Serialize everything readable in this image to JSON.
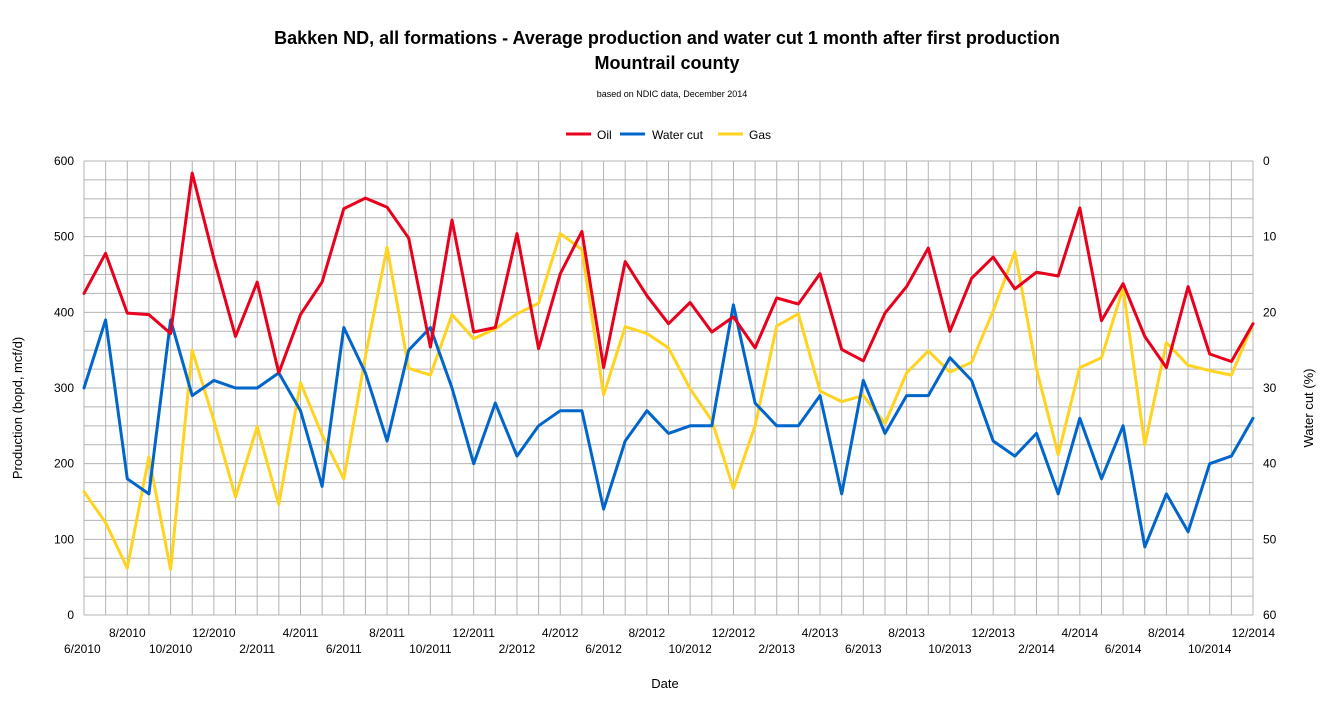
{
  "chart_data": {
    "type": "line",
    "title": "Bakken ND, all formations - Average production and water cut 1 month after first production",
    "title_line2": "Mountrail county",
    "subtitle": "based on NDIC data, December 2014",
    "xlabel": "Date",
    "ylabel": "Production (bopd, mcf/d)",
    "y2label": "Water cut (%)",
    "ylim": [
      0,
      600
    ],
    "y2lim": [
      0,
      60
    ],
    "y2_inverted": true,
    "yticks": [
      "0",
      "100",
      "200",
      "300",
      "400",
      "500",
      "600"
    ],
    "y2ticks": [
      "0",
      "10",
      "20",
      "30",
      "40",
      "50",
      "60"
    ],
    "grid": true,
    "legend_position": "top-center",
    "x": [
      "6/2010",
      "7/2010",
      "8/2010",
      "9/2010",
      "10/2010",
      "11/2010",
      "12/2010",
      "1/2011",
      "2/2011",
      "3/2011",
      "4/2011",
      "5/2011",
      "6/2011",
      "7/2011",
      "8/2011",
      "9/2011",
      "10/2011",
      "11/2011",
      "12/2011",
      "1/2012",
      "2/2012",
      "3/2012",
      "4/2012",
      "5/2012",
      "6/2012",
      "7/2012",
      "8/2012",
      "9/2012",
      "10/2012",
      "11/2012",
      "12/2012",
      "1/2013",
      "2/2013",
      "3/2013",
      "4/2013",
      "5/2013",
      "6/2013",
      "7/2013",
      "8/2013",
      "9/2013",
      "10/2013",
      "11/2013",
      "12/2013",
      "1/2014",
      "2/2014",
      "3/2014",
      "4/2014",
      "5/2014",
      "6/2014",
      "7/2014",
      "8/2014",
      "9/2014",
      "10/2014",
      "11/2014",
      "12/2014"
    ],
    "x_tick_labels": [
      {
        "index": 0,
        "label": "6/2010",
        "row": 2
      },
      {
        "index": 2,
        "label": "8/2010",
        "row": 1
      },
      {
        "index": 4,
        "label": "10/2010",
        "row": 2
      },
      {
        "index": 6,
        "label": "12/2010",
        "row": 1
      },
      {
        "index": 8,
        "label": "2/2011",
        "row": 2
      },
      {
        "index": 10,
        "label": "4/2011",
        "row": 1
      },
      {
        "index": 12,
        "label": "6/2011",
        "row": 2
      },
      {
        "index": 14,
        "label": "8/2011",
        "row": 1
      },
      {
        "index": 16,
        "label": "10/2011",
        "row": 2
      },
      {
        "index": 18,
        "label": "12/2011",
        "row": 1
      },
      {
        "index": 20,
        "label": "2/2012",
        "row": 2
      },
      {
        "index": 22,
        "label": "4/2012",
        "row": 1
      },
      {
        "index": 24,
        "label": "6/2012",
        "row": 2
      },
      {
        "index": 26,
        "label": "8/2012",
        "row": 1
      },
      {
        "index": 28,
        "label": "10/2012",
        "row": 2
      },
      {
        "index": 30,
        "label": "12/2012",
        "row": 1
      },
      {
        "index": 32,
        "label": "2/2013",
        "row": 2
      },
      {
        "index": 34,
        "label": "4/2013",
        "row": 1
      },
      {
        "index": 36,
        "label": "6/2013",
        "row": 2
      },
      {
        "index": 38,
        "label": "8/2013",
        "row": 1
      },
      {
        "index": 40,
        "label": "10/2013",
        "row": 2
      },
      {
        "index": 42,
        "label": "12/2013",
        "row": 1
      },
      {
        "index": 44,
        "label": "2/2014",
        "row": 2
      },
      {
        "index": 46,
        "label": "4/2014",
        "row": 1
      },
      {
        "index": 48,
        "label": "6/2014",
        "row": 2
      },
      {
        "index": 50,
        "label": "8/2014",
        "row": 1
      },
      {
        "index": 52,
        "label": "10/2014",
        "row": 2
      },
      {
        "index": 54,
        "label": "12/2014",
        "row": 1
      }
    ],
    "series": [
      {
        "name": "Oil",
        "color": "#e8001c",
        "axis": "left",
        "values": [
          425,
          478,
          399,
          397,
          372,
          584,
          471,
          368,
          440,
          320,
          397,
          440,
          537,
          551,
          539,
          498,
          354,
          522,
          374,
          380,
          504,
          352,
          451,
          507,
          327,
          467,
          422,
          385,
          413,
          374,
          394,
          353,
          419,
          411,
          451,
          351,
          336,
          399,
          434,
          485,
          375,
          445,
          473,
          431,
          453,
          448,
          538,
          389,
          438,
          368,
          327,
          434,
          345,
          335,
          385
        ]
      },
      {
        "name": "Water cut",
        "color": "#0066cc",
        "axis": "right",
        "values": [
          30,
          21,
          42,
          44,
          21,
          31,
          29,
          30,
          30,
          28,
          33,
          43,
          22,
          28,
          37,
          25,
          22,
          30,
          40,
          32,
          39,
          35,
          33,
          33,
          46,
          37,
          33,
          36,
          35,
          35,
          19,
          32,
          35,
          35,
          31,
          44,
          29,
          36,
          31,
          31,
          26,
          29,
          37,
          39,
          36,
          44,
          34,
          42,
          35,
          51,
          44,
          49,
          40,
          39,
          34
        ]
      },
      {
        "name": "Gas",
        "color": "#ffd320",
        "axis": "left",
        "values": [
          163,
          122,
          62,
          209,
          60,
          350,
          257,
          156,
          249,
          146,
          307,
          238,
          180,
          342,
          486,
          326,
          317,
          397,
          365,
          378,
          398,
          412,
          504,
          483,
          291,
          381,
          372,
          353,
          299,
          257,
          167,
          250,
          382,
          398,
          296,
          282,
          290,
          253,
          320,
          349,
          321,
          334,
          402,
          480,
          325,
          212,
          327,
          340,
          432,
          225,
          360,
          330,
          323,
          317,
          385
        ]
      }
    ]
  }
}
